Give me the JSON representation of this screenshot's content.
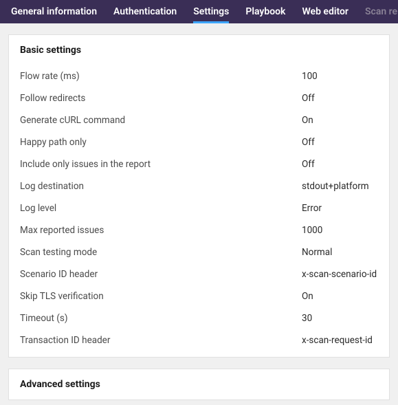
{
  "tabs": [
    {
      "label": "General information",
      "active": false
    },
    {
      "label": "Authentication",
      "active": false
    },
    {
      "label": "Settings",
      "active": true
    },
    {
      "label": "Playbook",
      "active": false
    },
    {
      "label": "Web editor",
      "active": false
    },
    {
      "label": "Scan re",
      "active": false,
      "dim": true
    }
  ],
  "panels": {
    "basic": {
      "title": "Basic settings",
      "rows": [
        {
          "label": "Flow rate (ms)",
          "value": "100"
        },
        {
          "label": "Follow redirects",
          "value": "Off"
        },
        {
          "label": "Generate cURL command",
          "value": "On"
        },
        {
          "label": "Happy path only",
          "value": "Off"
        },
        {
          "label": "Include only issues in the report",
          "value": "Off"
        },
        {
          "label": "Log destination",
          "value": "stdout+platform"
        },
        {
          "label": "Log level",
          "value": "Error"
        },
        {
          "label": "Max reported issues",
          "value": "1000"
        },
        {
          "label": "Scan testing mode",
          "value": "Normal"
        },
        {
          "label": "Scenario ID header",
          "value": "x-scan-scenario-id"
        },
        {
          "label": "Skip TLS verification",
          "value": "On"
        },
        {
          "label": "Timeout (s)",
          "value": "30"
        },
        {
          "label": "Transaction ID header",
          "value": "x-scan-request-id"
        }
      ]
    },
    "advanced": {
      "title": "Advanced settings"
    }
  },
  "colors": {
    "tab_bar_bg": "#3a2e56",
    "tab_active_underline": "#3ea6ff",
    "page_bg": "#f0f0f0",
    "panel_bg": "#ffffff",
    "panel_border": "#e0e0e0",
    "text_primary": "#1a1a1a",
    "text_label": "#4a4a4a",
    "text_value": "#2a2a2a",
    "tab_dim": "#8a8296"
  }
}
